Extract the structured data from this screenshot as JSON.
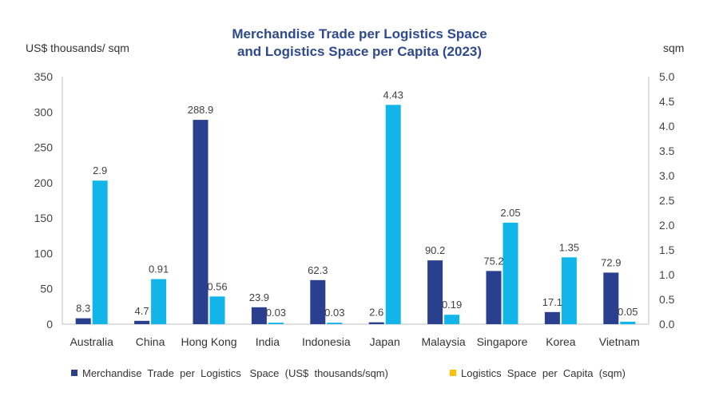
{
  "chart_data": {
    "type": "bar",
    "title": [
      "Merchandise Trade per Logistics Space",
      "and Logistics Space per Capita (2023)"
    ],
    "ylabel_left": "US$ thousands/  sqm",
    "ylabel_right": "sqm",
    "ylim_left": [
      0,
      350
    ],
    "ylim_right": [
      0,
      5.0
    ],
    "yticks_left": [
      "0",
      "50",
      "100",
      "150",
      "200",
      "250",
      "300",
      "350"
    ],
    "yticks_right": [
      "0.0",
      "0.5",
      "1.0",
      "1.5",
      "2.0",
      "2.5",
      "3.0",
      "3.5",
      "4.0",
      "4.5",
      "5.0"
    ],
    "categories": [
      "Australia",
      "China",
      "Hong Kong",
      "India",
      "Indonesia",
      "Japan",
      "Malaysia",
      "Singapore",
      "Korea",
      "Vietnam"
    ],
    "series": [
      {
        "name": "Merchandise  Trade  per  Logistics   Space  (US$  thousands/sqm)",
        "axis": "left",
        "color": "#2b3f8f",
        "values": [
          8.3,
          4.7,
          288.9,
          23.9,
          62.3,
          2.6,
          90.2,
          75.2,
          17.1,
          72.9
        ],
        "labels": [
          "8.3",
          "4.7",
          "288.9",
          "23.9",
          "62.3",
          "2.6",
          "90.2",
          "75.2",
          "17.1",
          "72.9"
        ]
      },
      {
        "name": "Logistics  Space  per  Capita  (sqm)",
        "axis": "right",
        "color": "#12b5ea",
        "legend_color": "#ffc000",
        "values": [
          2.9,
          0.91,
          0.56,
          0.03,
          0.03,
          4.43,
          0.19,
          2.05,
          1.35,
          0.05
        ],
        "labels": [
          "2.9",
          "0.91",
          "0.56",
          "0.03",
          "0.03",
          "4.43",
          "0.19",
          "2.05",
          "1.35",
          "0.05"
        ]
      }
    ],
    "legend_position": "bottom",
    "grid": false
  }
}
